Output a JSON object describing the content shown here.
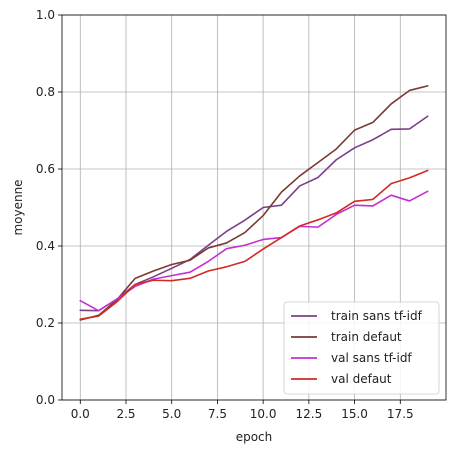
{
  "chart_data": {
    "type": "line",
    "title": "",
    "xlabel": "epoch",
    "ylabel": "moyenne",
    "xlim": [
      -1,
      20
    ],
    "ylim": [
      0.0,
      1.0
    ],
    "xticks": [
      0.0,
      2.5,
      5.0,
      7.5,
      10.0,
      12.5,
      15.0,
      17.5
    ],
    "xtick_labels": [
      "0.0",
      "2.5",
      "5.0",
      "7.5",
      "10.0",
      "12.5",
      "15.0",
      "17.5"
    ],
    "yticks": [
      0.0,
      0.2,
      0.4,
      0.6,
      0.8,
      1.0
    ],
    "ytick_labels": [
      "0.0",
      "0.2",
      "0.4",
      "0.6",
      "0.8",
      "1.0"
    ],
    "grid": true,
    "legend_position": "lower-right",
    "x": [
      0,
      1,
      2,
      3,
      4,
      5,
      6,
      7,
      8,
      9,
      10,
      11,
      12,
      13,
      14,
      15,
      16,
      17,
      18,
      19
    ],
    "series": [
      {
        "name": "train sans tf-idf",
        "color": "#7b3f8a",
        "values": [
          0.233,
          0.232,
          0.262,
          0.3,
          0.32,
          0.342,
          0.365,
          0.402,
          0.438,
          0.467,
          0.5,
          0.506,
          0.556,
          0.578,
          0.624,
          0.655,
          0.676,
          0.703,
          0.704,
          0.737
        ]
      },
      {
        "name": "train defaut",
        "color": "#7a3a32",
        "values": [
          0.208,
          0.22,
          0.26,
          0.316,
          0.335,
          0.352,
          0.363,
          0.395,
          0.408,
          0.435,
          0.479,
          0.54,
          0.582,
          0.617,
          0.652,
          0.701,
          0.721,
          0.769,
          0.804,
          0.816
        ]
      },
      {
        "name": "val sans tf-idf",
        "color": "#c42fd1",
        "values": [
          0.258,
          0.232,
          0.262,
          0.295,
          0.314,
          0.323,
          0.332,
          0.36,
          0.393,
          0.402,
          0.417,
          0.422,
          0.451,
          0.449,
          0.482,
          0.506,
          0.504,
          0.532,
          0.517,
          0.542
        ]
      },
      {
        "name": "val defaut",
        "color": "#d42a24",
        "values": [
          0.21,
          0.218,
          0.255,
          0.3,
          0.311,
          0.31,
          0.316,
          0.335,
          0.346,
          0.36,
          0.392,
          0.422,
          0.452,
          0.468,
          0.486,
          0.516,
          0.521,
          0.562,
          0.577,
          0.596
        ]
      }
    ]
  }
}
